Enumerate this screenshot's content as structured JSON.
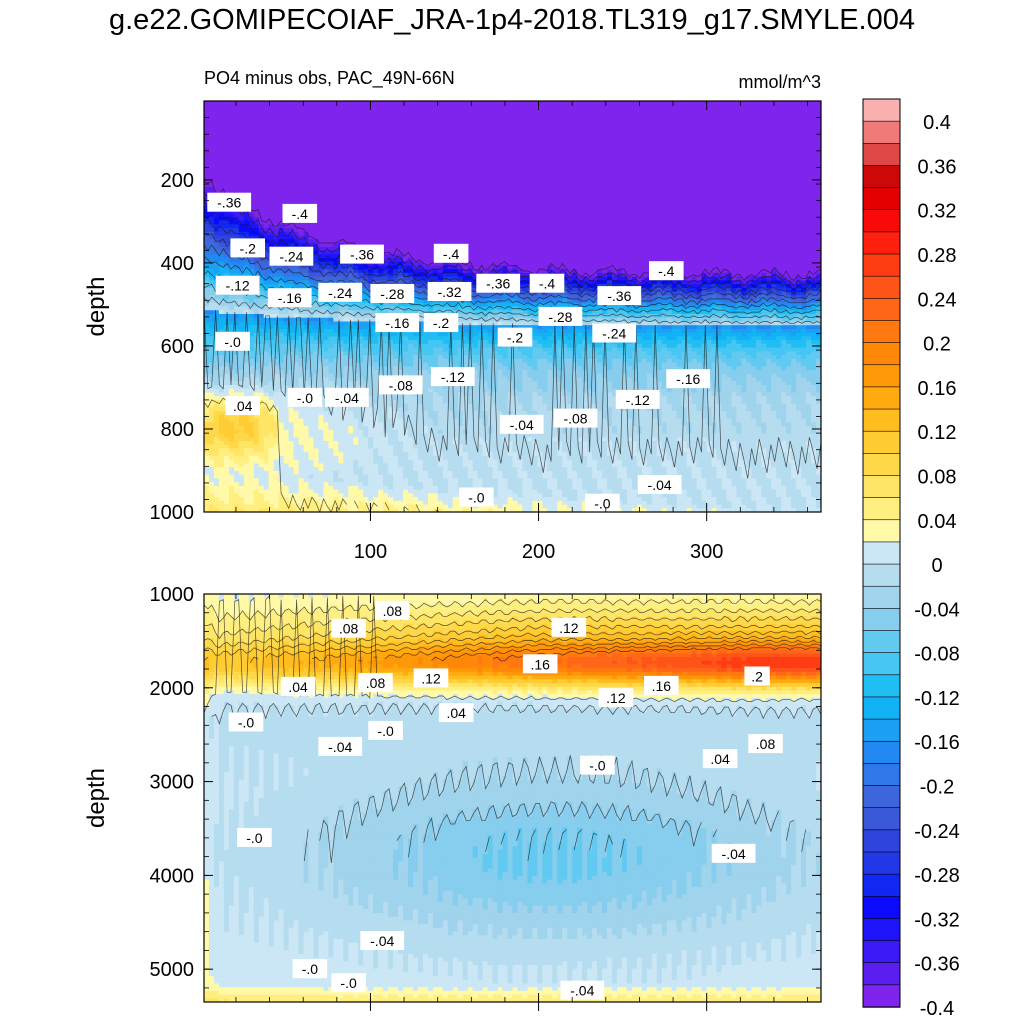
{
  "title": "g.e22.GOMIPECOIAF_JRA-1p4-2018.TL319_g17.SMYLE.004",
  "colors": {
    "levels": [
      -0.4,
      -0.38,
      -0.36,
      -0.34,
      -0.32,
      -0.3,
      -0.28,
      -0.26,
      -0.24,
      -0.22,
      -0.2,
      -0.18,
      -0.16,
      -0.14,
      -0.12,
      -0.1,
      -0.08,
      -0.06,
      -0.04,
      -0.02,
      0,
      0.02,
      0.04,
      0.06,
      0.08,
      0.1,
      0.12,
      0.14,
      0.16,
      0.18,
      0.2,
      0.22,
      0.24,
      0.26,
      0.28,
      0.3,
      0.32,
      0.34,
      0.36,
      0.38,
      0.4
    ],
    "fills": [
      "#7f24ec",
      "#5a1ff0",
      "#3a1af5",
      "#1e14fa",
      "#0a0afc",
      "#1228f0",
      "#2238e6",
      "#2e44dc",
      "#3a58d8",
      "#3e66da",
      "#2e78ea",
      "#2288f2",
      "#1ba0f4",
      "#12b2f6",
      "#20bef3",
      "#46c6f2",
      "#62caf0",
      "#86cdee",
      "#a0d3ec",
      "#b6dcf0",
      "#cbe6f4",
      "#fff9a8",
      "#ffef80",
      "#ffe566",
      "#ffd84a",
      "#ffcc33",
      "#ffbe1e",
      "#ffaa10",
      "#ff9808",
      "#ff8808",
      "#ff7810",
      "#ff6618",
      "#ff5418",
      "#ff3c14",
      "#ff2010",
      "#f80a08",
      "#e40000",
      "#cc0808",
      "#e04848",
      "#f07a7a",
      "#fab0b0"
    ]
  },
  "chart_data": [
    {
      "type": "heatmap",
      "panel": "upper",
      "title_left": "PO4 minus obs, PAC_49N-66N",
      "title_right": "mmol/m^3",
      "ylabel": "depth",
      "xlim": [
        1,
        368
      ],
      "ylim": [
        1000,
        10
      ],
      "yticks": [
        200,
        400,
        600,
        800,
        1000
      ],
      "xticks": [
        100,
        200,
        300
      ],
      "contour_labels": [
        {
          "text": "-.36",
          "x": 16,
          "depth": 255
        },
        {
          "text": "-.4",
          "x": 58,
          "depth": 282
        },
        {
          "text": "-.2",
          "x": 27,
          "depth": 365
        },
        {
          "text": "-.24",
          "x": 53,
          "depth": 385
        },
        {
          "text": "-.36",
          "x": 95,
          "depth": 380
        },
        {
          "text": "-.4",
          "x": 148,
          "depth": 378
        },
        {
          "text": "-.12",
          "x": 21,
          "depth": 455
        },
        {
          "text": "-.16",
          "x": 52,
          "depth": 485
        },
        {
          "text": "-.24",
          "x": 82,
          "depth": 472
        },
        {
          "text": "-.28",
          "x": 113,
          "depth": 475
        },
        {
          "text": "-.32",
          "x": 147,
          "depth": 470
        },
        {
          "text": "-.36",
          "x": 176,
          "depth": 450
        },
        {
          "text": "-.4",
          "x": 205,
          "depth": 450
        },
        {
          "text": "-.36",
          "x": 248,
          "depth": 480
        },
        {
          "text": "-.4",
          "x": 276,
          "depth": 420
        },
        {
          "text": "-.28",
          "x": 213,
          "depth": 530
        },
        {
          "text": "-.16",
          "x": 116,
          "depth": 545
        },
        {
          "text": "-.2",
          "x": 142,
          "depth": 545
        },
        {
          "text": "-.24",
          "x": 245,
          "depth": 570
        },
        {
          "text": "-.2",
          "x": 186,
          "depth": 580
        },
        {
          "text": "-.0",
          "x": 18,
          "depth": 590
        },
        {
          "text": "-.12",
          "x": 149,
          "depth": 675
        },
        {
          "text": "-.16",
          "x": 289,
          "depth": 680
        },
        {
          "text": "-.08",
          "x": 118,
          "depth": 695
        },
        {
          "text": "-.0",
          "x": 61,
          "depth": 725
        },
        {
          "text": "-.04",
          "x": 86,
          "depth": 725
        },
        {
          "text": "-.12",
          "x": 259,
          "depth": 730
        },
        {
          "text": ".04",
          "x": 24,
          "depth": 745
        },
        {
          "text": "-.04",
          "x": 190,
          "depth": 790
        },
        {
          "text": "-.08",
          "x": 222,
          "depth": 775
        },
        {
          "text": "-.04",
          "x": 272,
          "depth": 935
        },
        {
          "text": "-.0",
          "x": 163,
          "depth": 965
        },
        {
          "text": "-.0",
          "x": 238,
          "depth": 980
        }
      ]
    },
    {
      "type": "heatmap",
      "panel": "lower",
      "ylabel": "depth",
      "xlim": [
        1,
        368
      ],
      "ylim": [
        5350,
        1000
      ],
      "yticks": [
        1000,
        2000,
        3000,
        4000,
        5000
      ],
      "xticks": [
        100,
        200,
        300
      ],
      "contour_labels": [
        {
          "text": ".08",
          "x": 113,
          "depth": 1180
        },
        {
          "text": ".08",
          "x": 87,
          "depth": 1370
        },
        {
          "text": ".12",
          "x": 218,
          "depth": 1360
        },
        {
          "text": ".16",
          "x": 201,
          "depth": 1750
        },
        {
          "text": ".04",
          "x": 57,
          "depth": 1990
        },
        {
          "text": ".08",
          "x": 103,
          "depth": 1950
        },
        {
          "text": ".12",
          "x": 136,
          "depth": 1900
        },
        {
          "text": ".16",
          "x": 273,
          "depth": 1980
        },
        {
          "text": ".2",
          "x": 330,
          "depth": 1880
        },
        {
          "text": ".12",
          "x": 246,
          "depth": 2110
        },
        {
          "text": ".04",
          "x": 151,
          "depth": 2270
        },
        {
          "text": "-.0",
          "x": 26,
          "depth": 2370
        },
        {
          "text": "-.0",
          "x": 109,
          "depth": 2460
        },
        {
          "text": "-.04",
          "x": 82,
          "depth": 2630
        },
        {
          "text": ".08",
          "x": 335,
          "depth": 2600
        },
        {
          "text": ".04",
          "x": 308,
          "depth": 2760
        },
        {
          "text": "-.0",
          "x": 235,
          "depth": 2830
        },
        {
          "text": "-.0",
          "x": 31,
          "depth": 3600
        },
        {
          "text": "-.04",
          "x": 316,
          "depth": 3770
        },
        {
          "text": "-.04",
          "x": 107,
          "depth": 4700
        },
        {
          "text": "-.0",
          "x": 64,
          "depth": 5000
        },
        {
          "text": "-.0",
          "x": 87,
          "depth": 5150
        },
        {
          "text": "-.04",
          "x": 226,
          "depth": 5230
        }
      ]
    }
  ],
  "colorbar": {
    "labels": [
      "0.4",
      "0.36",
      "0.32",
      "0.28",
      "0.24",
      "0.2",
      "0.16",
      "0.12",
      "0.08",
      "0.04",
      "0",
      "-0.04",
      "-0.08",
      "-0.12",
      "-0.16",
      "-0.2",
      "-0.24",
      "-0.28",
      "-0.32",
      "-0.36",
      "-0.4"
    ],
    "values": [
      0.4,
      0.36,
      0.32,
      0.28,
      0.24,
      0.2,
      0.16,
      0.12,
      0.08,
      0.04,
      0,
      -0.04,
      -0.08,
      -0.12,
      -0.16,
      -0.2,
      -0.24,
      -0.28,
      -0.32,
      -0.36,
      -0.4
    ]
  }
}
